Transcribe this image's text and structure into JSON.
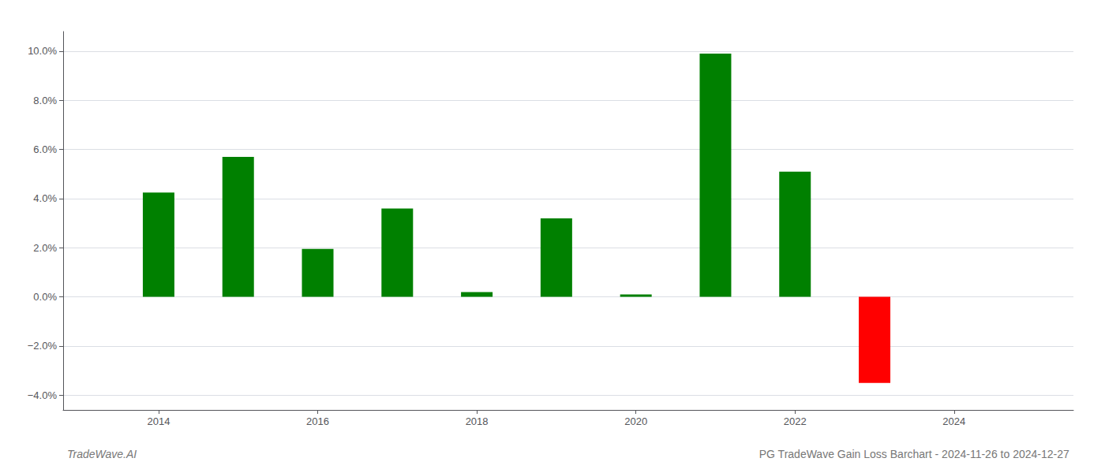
{
  "chart_data": {
    "type": "bar",
    "title": "PG TradeWave Gain Loss Barchart - 2024-11-26 to 2024-12-27",
    "annotations": [
      "TradeWave.AI"
    ],
    "x": [
      2014,
      2015,
      2016,
      2017,
      2018,
      2019,
      2020,
      2021,
      2022,
      2023
    ],
    "values": [
      0.0425,
      0.057,
      0.0195,
      0.036,
      0.002,
      0.032,
      0.001,
      0.099,
      0.051,
      -0.035
    ],
    "colors": [
      "#008000",
      "#008000",
      "#008000",
      "#008000",
      "#008000",
      "#008000",
      "#008000",
      "#008000",
      "#008000",
      "#ff0000"
    ],
    "xlim": [
      2012.8,
      2025.5
    ],
    "xticks": [
      2014,
      2016,
      2018,
      2020,
      2022,
      2024
    ],
    "ylim": [
      -0.046,
      0.108
    ],
    "yticks": [
      {
        "value": -0.04,
        "label": "−4.0%"
      },
      {
        "value": -0.02,
        "label": "−2.0%"
      },
      {
        "value": 0.0,
        "label": "0.0%"
      },
      {
        "value": 0.02,
        "label": "2.0%"
      },
      {
        "value": 0.04,
        "label": "4.0%"
      },
      {
        "value": 0.06,
        "label": "6.0%"
      },
      {
        "value": 0.08,
        "label": "8.0%"
      },
      {
        "value": 0.1,
        "label": "10.0%"
      }
    ],
    "grid": true
  }
}
